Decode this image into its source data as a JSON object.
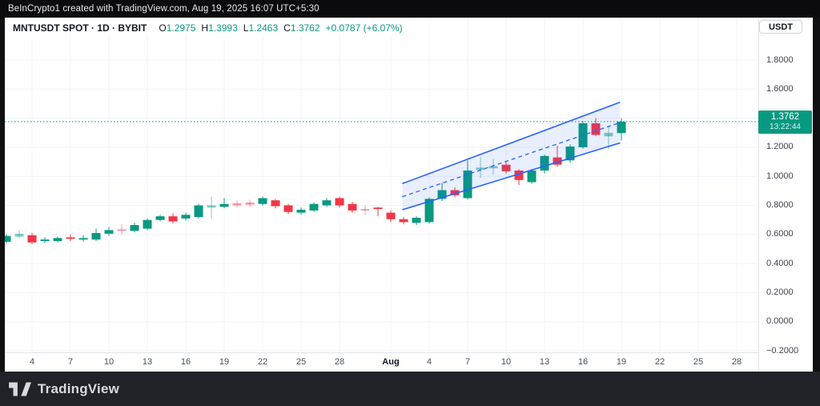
{
  "top_bar": {
    "text": "BeInCrypto1 created with TradingView.com, Aug 19, 2025 16:07 UTC+5:30"
  },
  "header": {
    "title": "MNTUSDT SPOT · 1D · BYBIT",
    "ohlc": [
      {
        "label": "O",
        "value": "1.2975"
      },
      {
        "label": "H",
        "value": "1.3993"
      },
      {
        "label": "L",
        "value": "1.2463"
      },
      {
        "label": "C",
        "value": "1.3762"
      }
    ],
    "change": "+0.0787 (+6.07%)"
  },
  "price_axis": {
    "currency_button": "USDT",
    "labels": [
      {
        "label": "1.8000",
        "v": 1.8
      },
      {
        "label": "1.6000",
        "v": 1.6
      },
      {
        "label": "1.4000",
        "v": 1.4
      },
      {
        "label": "1.2000",
        "v": 1.2
      },
      {
        "label": "1.0000",
        "v": 1.0
      },
      {
        "label": "0.8000",
        "v": 0.8
      },
      {
        "label": "0.6000",
        "v": 0.6
      },
      {
        "label": "0.4000",
        "v": 0.4
      },
      {
        "label": "0.2000",
        "v": 0.2
      },
      {
        "label": "0.0000",
        "v": 0.0
      },
      {
        "label": "−0.2000",
        "v": -0.2
      }
    ],
    "last_price": "1.3762",
    "countdown": "13:22:44"
  },
  "time_axis": {
    "ticks": [
      {
        "label": "4",
        "i": 2
      },
      {
        "label": "7",
        "i": 5
      },
      {
        "label": "10",
        "i": 8
      },
      {
        "label": "13",
        "i": 11
      },
      {
        "label": "16",
        "i": 14
      },
      {
        "label": "19",
        "i": 17
      },
      {
        "label": "22",
        "i": 20
      },
      {
        "label": "25",
        "i": 23
      },
      {
        "label": "28",
        "i": 26
      },
      {
        "label": "Aug",
        "i": 30,
        "bold": true
      },
      {
        "label": "4",
        "i": 33
      },
      {
        "label": "7",
        "i": 36
      },
      {
        "label": "10",
        "i": 39
      },
      {
        "label": "13",
        "i": 42
      },
      {
        "label": "16",
        "i": 45
      },
      {
        "label": "19",
        "i": 48
      },
      {
        "label": "22",
        "i": 51
      },
      {
        "label": "25",
        "i": 54
      },
      {
        "label": "28",
        "i": 57
      }
    ]
  },
  "footer": {
    "brand": "TradingView"
  },
  "colors": {
    "up": "#089981",
    "down": "#f23645",
    "channel_line": "#2962ff",
    "channel_fill": "rgba(41,98,255,0.10)",
    "grid": "#f0f3fa",
    "last_price_line": "#089981",
    "tag_bg": "#089981"
  },
  "chart_data": {
    "type": "candlestick",
    "title": "MNTUSDT SPOT · 1D · BYBIT",
    "ylabel": "USDT",
    "ylim": [
      -0.2,
      1.8
    ],
    "y_tick_step": 0.2,
    "grid": true,
    "last_price": 1.3762,
    "candles": [
      {
        "date": "Jul 2",
        "o": 0.55,
        "h": 0.6,
        "l": 0.54,
        "c": 0.59
      },
      {
        "date": "Jul 3",
        "o": 0.585,
        "h": 0.63,
        "l": 0.57,
        "c": 0.605,
        "shade": "light"
      },
      {
        "date": "Jul 4",
        "o": 0.595,
        "h": 0.61,
        "l": 0.535,
        "c": 0.545
      },
      {
        "date": "Jul 5",
        "o": 0.555,
        "h": 0.58,
        "l": 0.54,
        "c": 0.565
      },
      {
        "date": "Jul 6",
        "o": 0.555,
        "h": 0.585,
        "l": 0.545,
        "c": 0.575
      },
      {
        "date": "Jul 7",
        "o": 0.58,
        "h": 0.6,
        "l": 0.555,
        "c": 0.57
      },
      {
        "date": "Jul 8",
        "o": 0.565,
        "h": 0.595,
        "l": 0.55,
        "c": 0.575
      },
      {
        "date": "Jul 9",
        "o": 0.565,
        "h": 0.64,
        "l": 0.555,
        "c": 0.61
      },
      {
        "date": "Jul 10",
        "o": 0.605,
        "h": 0.65,
        "l": 0.59,
        "c": 0.63
      },
      {
        "date": "Jul 11",
        "o": 0.635,
        "h": 0.67,
        "l": 0.6,
        "c": 0.625,
        "shade": "light"
      },
      {
        "date": "Jul 12",
        "o": 0.625,
        "h": 0.68,
        "l": 0.615,
        "c": 0.665
      },
      {
        "date": "Jul 13",
        "o": 0.64,
        "h": 0.71,
        "l": 0.63,
        "c": 0.7
      },
      {
        "date": "Jul 14",
        "o": 0.7,
        "h": 0.735,
        "l": 0.69,
        "c": 0.725
      },
      {
        "date": "Jul 15",
        "o": 0.725,
        "h": 0.745,
        "l": 0.675,
        "c": 0.69
      },
      {
        "date": "Jul 16",
        "o": 0.71,
        "h": 0.75,
        "l": 0.695,
        "c": 0.735
      },
      {
        "date": "Jul 17",
        "o": 0.72,
        "h": 0.81,
        "l": 0.71,
        "c": 0.8
      },
      {
        "date": "Jul 18",
        "o": 0.785,
        "h": 0.86,
        "l": 0.71,
        "c": 0.8,
        "shade": "light"
      },
      {
        "date": "Jul 19",
        "o": 0.79,
        "h": 0.85,
        "l": 0.78,
        "c": 0.81
      },
      {
        "date": "Jul 20",
        "o": 0.815,
        "h": 0.835,
        "l": 0.785,
        "c": 0.8,
        "shade": "light"
      },
      {
        "date": "Jul 21",
        "o": 0.82,
        "h": 0.84,
        "l": 0.79,
        "c": 0.805,
        "shade": "light"
      },
      {
        "date": "Jul 22",
        "o": 0.81,
        "h": 0.86,
        "l": 0.8,
        "c": 0.85
      },
      {
        "date": "Jul 23",
        "o": 0.835,
        "h": 0.845,
        "l": 0.78,
        "c": 0.795
      },
      {
        "date": "Jul 24",
        "o": 0.8,
        "h": 0.81,
        "l": 0.74,
        "c": 0.755
      },
      {
        "date": "Jul 25",
        "o": 0.75,
        "h": 0.785,
        "l": 0.735,
        "c": 0.77
      },
      {
        "date": "Jul 26",
        "o": 0.765,
        "h": 0.82,
        "l": 0.755,
        "c": 0.81
      },
      {
        "date": "Jul 27",
        "o": 0.8,
        "h": 0.85,
        "l": 0.79,
        "c": 0.835
      },
      {
        "date": "Jul 28",
        "o": 0.85,
        "h": 0.86,
        "l": 0.785,
        "c": 0.8
      },
      {
        "date": "Jul 29",
        "o": 0.81,
        "h": 0.825,
        "l": 0.75,
        "c": 0.765
      },
      {
        "date": "Jul 30",
        "o": 0.775,
        "h": 0.8,
        "l": 0.735,
        "c": 0.765,
        "shade": "light"
      },
      {
        "date": "Jul 31",
        "o": 0.785,
        "h": 0.79,
        "l": 0.725,
        "c": 0.775
      },
      {
        "date": "Aug 1",
        "o": 0.75,
        "h": 0.765,
        "l": 0.685,
        "c": 0.705
      },
      {
        "date": "Aug 2",
        "o": 0.705,
        "h": 0.72,
        "l": 0.67,
        "c": 0.685
      },
      {
        "date": "Aug 3",
        "o": 0.68,
        "h": 0.725,
        "l": 0.665,
        "c": 0.715
      },
      {
        "date": "Aug 4",
        "o": 0.685,
        "h": 0.855,
        "l": 0.675,
        "c": 0.845
      },
      {
        "date": "Aug 5",
        "o": 0.845,
        "h": 0.955,
        "l": 0.83,
        "c": 0.905
      },
      {
        "date": "Aug 6",
        "o": 0.905,
        "h": 0.925,
        "l": 0.855,
        "c": 0.87
      },
      {
        "date": "Aug 7",
        "o": 0.85,
        "h": 1.11,
        "l": 0.84,
        "c": 1.04
      },
      {
        "date": "Aug 8",
        "o": 1.045,
        "h": 1.13,
        "l": 0.99,
        "c": 1.06,
        "shade": "light"
      },
      {
        "date": "Aug 9",
        "o": 1.055,
        "h": 1.12,
        "l": 1.01,
        "c": 1.07,
        "shade": "light"
      },
      {
        "date": "Aug 10",
        "o": 1.08,
        "h": 1.1,
        "l": 1.02,
        "c": 1.035
      },
      {
        "date": "Aug 11",
        "o": 1.04,
        "h": 1.05,
        "l": 0.94,
        "c": 0.975
      },
      {
        "date": "Aug 12",
        "o": 0.96,
        "h": 1.05,
        "l": 0.95,
        "c": 1.04
      },
      {
        "date": "Aug 13",
        "o": 1.04,
        "h": 1.15,
        "l": 1.02,
        "c": 1.14
      },
      {
        "date": "Aug 14",
        "o": 1.13,
        "h": 1.21,
        "l": 1.065,
        "c": 1.08
      },
      {
        "date": "Aug 15",
        "o": 1.11,
        "h": 1.22,
        "l": 1.095,
        "c": 1.205
      },
      {
        "date": "Aug 16",
        "o": 1.2,
        "h": 1.38,
        "l": 1.19,
        "c": 1.365
      },
      {
        "date": "Aug 17",
        "o": 1.365,
        "h": 1.4,
        "l": 1.275,
        "c": 1.285
      },
      {
        "date": "Aug 18",
        "o": 1.275,
        "h": 1.35,
        "l": 1.19,
        "c": 1.3,
        "shade": "light"
      },
      {
        "date": "Aug 19",
        "o": 1.2975,
        "h": 1.3993,
        "l": 1.2463,
        "c": 1.3762
      }
    ],
    "channel": {
      "type": "parallel-channel",
      "start_index": 30.9,
      "end_index": 47.9,
      "top_start": 0.95,
      "top_end": 1.51,
      "bottom_start": 0.77,
      "bottom_end": 1.23,
      "median": "dashed"
    }
  }
}
